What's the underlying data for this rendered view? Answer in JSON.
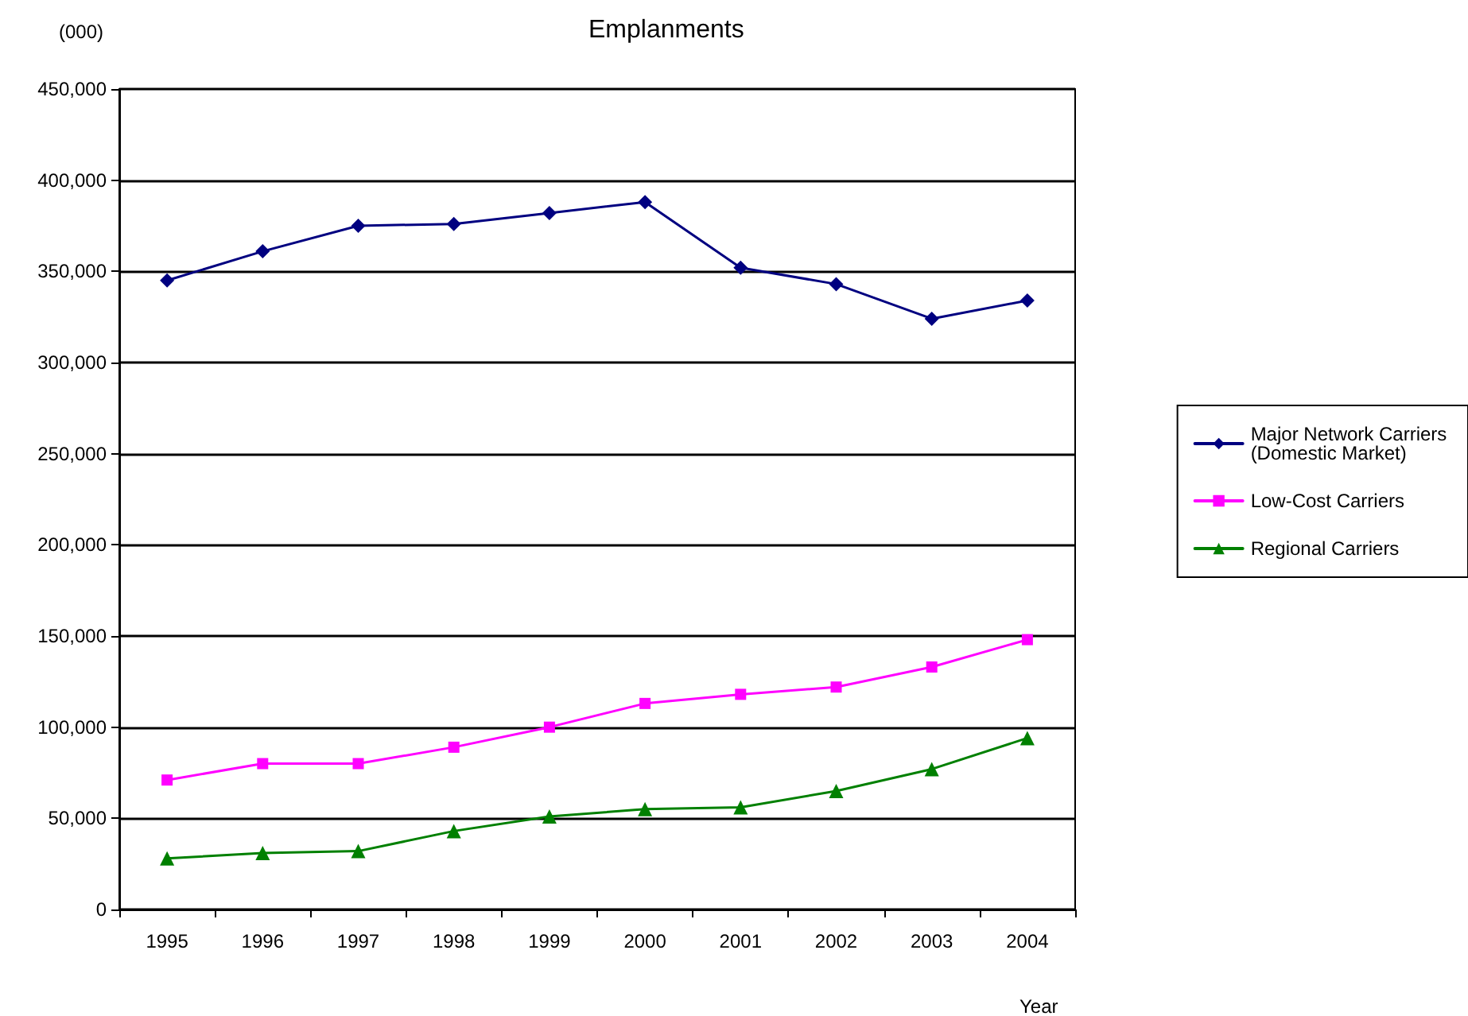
{
  "chart_data": {
    "type": "line",
    "title": "Emplanments",
    "xlabel": "Year",
    "ylabel": "(000)",
    "categories": [
      "1995",
      "1996",
      "1997",
      "1998",
      "1999",
      "2000",
      "2001",
      "2002",
      "2003",
      "2004"
    ],
    "series": [
      {
        "name": "Major Network Carriers (Domestic Market)",
        "color": "#000080",
        "marker": "diamond",
        "values": [
          345000,
          361000,
          375000,
          376000,
          382000,
          388000,
          352000,
          343000,
          324000,
          334000
        ]
      },
      {
        "name": "Low-Cost Carriers",
        "color": "#ff00ff",
        "marker": "square",
        "values": [
          71000,
          80000,
          80000,
          89000,
          100000,
          113000,
          118000,
          122000,
          133000,
          148000
        ]
      },
      {
        "name": "Regional Carriers",
        "color": "#008000",
        "marker": "triangle",
        "values": [
          28000,
          31000,
          32000,
          43000,
          51000,
          55000,
          56000,
          65000,
          77000,
          94000
        ]
      }
    ],
    "ylim": [
      0,
      450000
    ],
    "yticks": [
      0,
      {
        "value": 50000,
        "label": "50,000"
      },
      {
        "value": 100000,
        "label": "100,000"
      },
      {
        "value": 150000,
        "label": "150,000"
      },
      {
        "value": 200000,
        "label": "200,000"
      },
      {
        "value": 250000,
        "label": "250,000"
      },
      {
        "value": 300000,
        "label": "300,000"
      },
      {
        "value": 350000,
        "label": "350,000"
      },
      {
        "value": 400000,
        "label": "400,000"
      },
      {
        "value": 450000,
        "label": "450,000"
      }
    ],
    "grid": "y",
    "legend": "right",
    "line_style": "solid"
  }
}
